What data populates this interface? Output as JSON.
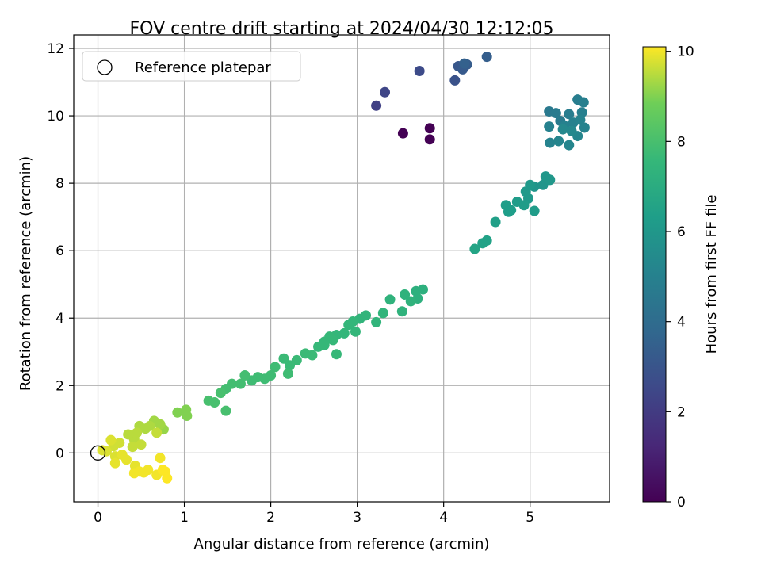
{
  "chart_data": {
    "type": "scatter",
    "title": "FOV centre drift starting at 2024/04/30 12:12:05",
    "xlabel": "Angular distance from reference (arcmin)",
    "ylabel": "Rotation from reference (arcmin)",
    "xlim": [
      -0.28,
      5.92
    ],
    "ylim": [
      -1.45,
      12.4
    ],
    "xticks": [
      0,
      1,
      2,
      3,
      4,
      5
    ],
    "yticks": [
      0,
      2,
      4,
      6,
      8,
      10,
      12
    ],
    "grid": true,
    "legend": {
      "location": "upper-left",
      "entries": [
        {
          "label": "Reference platepar",
          "marker": "open-circle"
        }
      ]
    },
    "reference_point": {
      "x": 0,
      "y": 0
    },
    "colorbar": {
      "label": "Hours from first FF file",
      "colormap": "viridis",
      "range": [
        0,
        10.1
      ],
      "ticks": [
        0,
        2,
        4,
        6,
        8,
        10
      ]
    },
    "points": [
      {
        "x": 3.53,
        "y": 9.48,
        "c": 0.0
      },
      {
        "x": 3.84,
        "y": 9.63,
        "c": 0.0
      },
      {
        "x": 3.84,
        "y": 9.3,
        "c": 0.0
      },
      {
        "x": 3.22,
        "y": 10.3,
        "c": 2.2
      },
      {
        "x": 3.32,
        "y": 10.7,
        "c": 2.4
      },
      {
        "x": 3.72,
        "y": 11.33,
        "c": 2.6
      },
      {
        "x": 4.13,
        "y": 11.05,
        "c": 2.9
      },
      {
        "x": 4.17,
        "y": 11.47,
        "c": 3.1
      },
      {
        "x": 4.22,
        "y": 11.38,
        "c": 3.2
      },
      {
        "x": 4.27,
        "y": 11.52,
        "c": 3.3
      },
      {
        "x": 4.5,
        "y": 11.75,
        "c": 3.4
      },
      {
        "x": 4.24,
        "y": 11.55,
        "c": 3.5
      },
      {
        "x": 5.22,
        "y": 10.13,
        "c": 4.6
      },
      {
        "x": 5.3,
        "y": 10.08,
        "c": 4.7
      },
      {
        "x": 5.35,
        "y": 9.85,
        "c": 4.7
      },
      {
        "x": 5.45,
        "y": 10.05,
        "c": 4.8
      },
      {
        "x": 5.55,
        "y": 10.48,
        "c": 4.8
      },
      {
        "x": 5.62,
        "y": 10.4,
        "c": 4.9
      },
      {
        "x": 5.6,
        "y": 10.1,
        "c": 4.9
      },
      {
        "x": 5.22,
        "y": 9.68,
        "c": 5.0
      },
      {
        "x": 5.4,
        "y": 9.7,
        "c": 5.0
      },
      {
        "x": 5.5,
        "y": 9.8,
        "c": 5.0
      },
      {
        "x": 5.58,
        "y": 9.88,
        "c": 5.1
      },
      {
        "x": 5.63,
        "y": 9.65,
        "c": 5.1
      },
      {
        "x": 5.23,
        "y": 9.2,
        "c": 5.1
      },
      {
        "x": 5.33,
        "y": 9.25,
        "c": 5.2
      },
      {
        "x": 5.45,
        "y": 9.13,
        "c": 5.2
      },
      {
        "x": 5.55,
        "y": 9.4,
        "c": 5.2
      },
      {
        "x": 5.48,
        "y": 9.55,
        "c": 5.3
      },
      {
        "x": 5.38,
        "y": 9.6,
        "c": 5.3
      },
      {
        "x": 5.05,
        "y": 7.9,
        "c": 5.9
      },
      {
        "x": 5.15,
        "y": 7.95,
        "c": 5.9
      },
      {
        "x": 5.18,
        "y": 8.2,
        "c": 6.0
      },
      {
        "x": 5.23,
        "y": 8.1,
        "c": 6.0
      },
      {
        "x": 4.95,
        "y": 7.75,
        "c": 6.1
      },
      {
        "x": 5.0,
        "y": 7.95,
        "c": 6.1
      },
      {
        "x": 4.98,
        "y": 7.55,
        "c": 6.1
      },
      {
        "x": 5.05,
        "y": 7.18,
        "c": 6.2
      },
      {
        "x": 4.93,
        "y": 7.35,
        "c": 6.2
      },
      {
        "x": 4.85,
        "y": 7.45,
        "c": 6.2
      },
      {
        "x": 4.78,
        "y": 7.2,
        "c": 6.3
      },
      {
        "x": 4.72,
        "y": 7.35,
        "c": 6.3
      },
      {
        "x": 4.75,
        "y": 7.15,
        "c": 6.3
      },
      {
        "x": 4.6,
        "y": 6.85,
        "c": 6.4
      },
      {
        "x": 4.5,
        "y": 6.3,
        "c": 6.5
      },
      {
        "x": 4.45,
        "y": 6.22,
        "c": 6.5
      },
      {
        "x": 4.36,
        "y": 6.05,
        "c": 6.6
      },
      {
        "x": 3.76,
        "y": 4.85,
        "c": 7.2
      },
      {
        "x": 3.68,
        "y": 4.8,
        "c": 7.2
      },
      {
        "x": 3.7,
        "y": 4.58,
        "c": 7.2
      },
      {
        "x": 3.55,
        "y": 4.7,
        "c": 7.3
      },
      {
        "x": 3.62,
        "y": 4.5,
        "c": 7.3
      },
      {
        "x": 3.52,
        "y": 4.2,
        "c": 7.3
      },
      {
        "x": 3.38,
        "y": 4.55,
        "c": 7.3
      },
      {
        "x": 3.3,
        "y": 4.15,
        "c": 7.4
      },
      {
        "x": 3.22,
        "y": 3.88,
        "c": 7.4
      },
      {
        "x": 3.1,
        "y": 4.08,
        "c": 7.4
      },
      {
        "x": 3.03,
        "y": 3.98,
        "c": 7.4
      },
      {
        "x": 2.95,
        "y": 3.9,
        "c": 7.5
      },
      {
        "x": 2.9,
        "y": 3.8,
        "c": 7.5
      },
      {
        "x": 2.98,
        "y": 3.6,
        "c": 7.5
      },
      {
        "x": 2.85,
        "y": 3.55,
        "c": 7.5
      },
      {
        "x": 2.76,
        "y": 3.5,
        "c": 7.5
      },
      {
        "x": 2.72,
        "y": 3.35,
        "c": 7.6
      },
      {
        "x": 2.68,
        "y": 3.45,
        "c": 7.6
      },
      {
        "x": 2.62,
        "y": 3.3,
        "c": 7.6
      },
      {
        "x": 2.76,
        "y": 2.93,
        "c": 7.6
      },
      {
        "x": 2.55,
        "y": 3.15,
        "c": 7.6
      },
      {
        "x": 2.48,
        "y": 2.9,
        "c": 7.7
      },
      {
        "x": 2.4,
        "y": 2.95,
        "c": 7.7
      },
      {
        "x": 2.3,
        "y": 2.75,
        "c": 7.7
      },
      {
        "x": 2.22,
        "y": 2.6,
        "c": 7.7
      },
      {
        "x": 2.15,
        "y": 2.8,
        "c": 7.7
      },
      {
        "x": 2.05,
        "y": 2.55,
        "c": 7.8
      },
      {
        "x": 2.0,
        "y": 2.3,
        "c": 7.8
      },
      {
        "x": 1.93,
        "y": 2.2,
        "c": 7.8
      },
      {
        "x": 1.85,
        "y": 2.25,
        "c": 7.8
      },
      {
        "x": 1.78,
        "y": 2.15,
        "c": 7.8
      },
      {
        "x": 1.7,
        "y": 2.3,
        "c": 7.9
      },
      {
        "x": 1.65,
        "y": 2.05,
        "c": 7.9
      },
      {
        "x": 1.55,
        "y": 2.05,
        "c": 7.9
      },
      {
        "x": 1.48,
        "y": 1.9,
        "c": 7.9
      },
      {
        "x": 1.42,
        "y": 1.78,
        "c": 8.0
      },
      {
        "x": 1.35,
        "y": 1.5,
        "c": 8.0
      },
      {
        "x": 1.28,
        "y": 1.55,
        "c": 8.0
      },
      {
        "x": 1.48,
        "y": 1.25,
        "c": 8.0
      },
      {
        "x": 2.2,
        "y": 2.35,
        "c": 7.8
      },
      {
        "x": 2.62,
        "y": 3.2,
        "c": 7.6
      },
      {
        "x": 1.02,
        "y": 1.28,
        "c": 9.0
      },
      {
        "x": 0.92,
        "y": 1.2,
        "c": 9.0
      },
      {
        "x": 1.03,
        "y": 1.1,
        "c": 9.0
      },
      {
        "x": 0.76,
        "y": 0.7,
        "c": 9.2
      },
      {
        "x": 0.72,
        "y": 0.85,
        "c": 9.3
      },
      {
        "x": 0.65,
        "y": 0.95,
        "c": 9.3
      },
      {
        "x": 0.6,
        "y": 0.8,
        "c": 9.4
      },
      {
        "x": 0.55,
        "y": 0.72,
        "c": 9.4
      },
      {
        "x": 0.48,
        "y": 0.8,
        "c": 9.4
      },
      {
        "x": 0.45,
        "y": 0.6,
        "c": 9.5
      },
      {
        "x": 0.42,
        "y": 0.4,
        "c": 9.5
      },
      {
        "x": 0.35,
        "y": 0.55,
        "c": 9.5
      },
      {
        "x": 0.4,
        "y": 0.18,
        "c": 9.6
      },
      {
        "x": 0.5,
        "y": 0.25,
        "c": 9.6
      },
      {
        "x": 0.68,
        "y": 0.6,
        "c": 9.6
      },
      {
        "x": 0.25,
        "y": 0.3,
        "c": 9.7
      },
      {
        "x": 0.18,
        "y": 0.2,
        "c": 9.7
      },
      {
        "x": 0.15,
        "y": 0.38,
        "c": 9.8
      },
      {
        "x": 0.1,
        "y": 0.05,
        "c": 9.8
      },
      {
        "x": 0.05,
        "y": 0.08,
        "c": 9.8
      },
      {
        "x": 0.2,
        "y": -0.1,
        "c": 9.8
      },
      {
        "x": 0.28,
        "y": -0.05,
        "c": 9.9
      },
      {
        "x": 0.33,
        "y": -0.2,
        "c": 9.9
      },
      {
        "x": 0.2,
        "y": -0.3,
        "c": 9.9
      },
      {
        "x": 0.43,
        "y": -0.38,
        "c": 9.9
      },
      {
        "x": 0.48,
        "y": -0.55,
        "c": 10.0
      },
      {
        "x": 0.42,
        "y": -0.6,
        "c": 10.0
      },
      {
        "x": 0.58,
        "y": -0.5,
        "c": 10.0
      },
      {
        "x": 0.53,
        "y": -0.58,
        "c": 10.0
      },
      {
        "x": 0.72,
        "y": -0.15,
        "c": 10.0
      },
      {
        "x": 0.68,
        "y": -0.65,
        "c": 10.0
      },
      {
        "x": 0.8,
        "y": -0.75,
        "c": 10.1
      },
      {
        "x": 0.78,
        "y": -0.55,
        "c": 10.1
      },
      {
        "x": 0.75,
        "y": -0.5,
        "c": 10.1
      }
    ]
  }
}
